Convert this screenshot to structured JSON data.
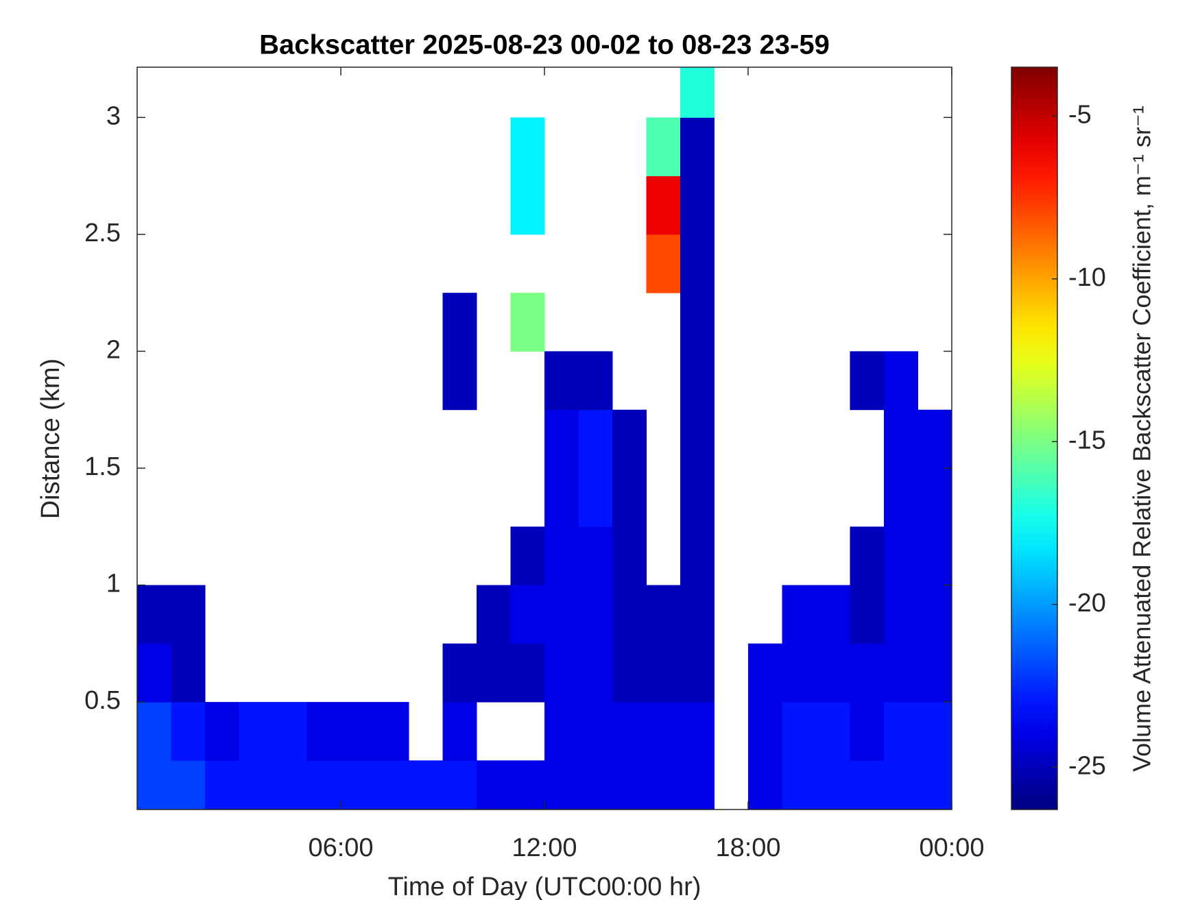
{
  "chart_data": {
    "type": "heatmap",
    "title": "Backscatter 2025-08-23 00-02 to 08-23 23-59",
    "x_label": "Time of Day (UTC00:00 hr)",
    "y_label": "Distance (km)",
    "colorbar_label": "Volume Attenuated Relative Backscatter Coefficient, m⁻¹ sr⁻¹",
    "colormap": "jet",
    "xlim": [
      0,
      24
    ],
    "xticks": [
      {
        "value": 6,
        "label": "06:00"
      },
      {
        "value": 12,
        "label": "12:00"
      },
      {
        "value": 18,
        "label": "18:00"
      },
      {
        "value": 24,
        "label": "00:00"
      }
    ],
    "ylim": [
      0.04,
      3.215
    ],
    "yticks": [
      0.5,
      1,
      1.5,
      2,
      2.5,
      3
    ],
    "clim": [
      -26.3,
      -3.5
    ],
    "cticks": [
      -25,
      -20,
      -15,
      -10,
      -5
    ],
    "xbins": [
      0,
      1,
      2,
      3,
      4,
      5,
      6,
      7,
      8,
      9,
      10,
      11,
      12,
      13,
      14,
      15,
      16,
      17,
      18,
      19,
      20,
      21,
      22,
      23,
      24
    ],
    "ybins": [
      0.04,
      0.25,
      0.5,
      0.75,
      1,
      1.25,
      1.5,
      1.75,
      2,
      2.25,
      2.5,
      2.75,
      3,
      3.215
    ],
    "values": [
      [
        -22,
        -22,
        -23,
        -23,
        -23,
        -23,
        -23,
        -23,
        -23,
        -23,
        -24,
        -24,
        -24,
        -24,
        -24,
        -24,
        -24,
        null,
        -24,
        -23,
        -23,
        -23,
        -23,
        -23
      ],
      [
        -22,
        -23,
        -24,
        -23,
        -23,
        -24,
        -24,
        -24,
        null,
        -24,
        null,
        null,
        -24,
        -24,
        -24,
        -24,
        -24,
        null,
        -24,
        -23,
        -23,
        -24,
        -23,
        -23
      ],
      [
        -24,
        -25,
        null,
        null,
        null,
        null,
        null,
        null,
        null,
        -25,
        -25,
        -25,
        -24,
        -24,
        -25,
        -25,
        -25,
        null,
        -24,
        -24,
        -24,
        -24,
        -24,
        -24
      ],
      [
        -25,
        -25,
        null,
        null,
        null,
        null,
        null,
        null,
        null,
        null,
        -25,
        -24,
        -24,
        -24,
        -25,
        -25,
        -25,
        null,
        null,
        -24,
        -24,
        -25,
        -24,
        -24
      ],
      [
        null,
        null,
        null,
        null,
        null,
        null,
        null,
        null,
        null,
        null,
        null,
        -25,
        -24,
        -24,
        -25,
        null,
        -25,
        null,
        null,
        null,
        null,
        -25,
        -24,
        -24
      ],
      [
        null,
        null,
        null,
        null,
        null,
        null,
        null,
        null,
        null,
        null,
        null,
        null,
        -24,
        -23,
        -25,
        null,
        -25,
        null,
        null,
        null,
        null,
        null,
        -24,
        -24
      ],
      [
        null,
        null,
        null,
        null,
        null,
        null,
        null,
        null,
        null,
        null,
        null,
        null,
        -24,
        -23,
        -25,
        null,
        -25,
        null,
        null,
        null,
        null,
        null,
        -24,
        -24
      ],
      [
        null,
        null,
        null,
        null,
        null,
        null,
        null,
        null,
        null,
        -25,
        null,
        null,
        -25,
        -25,
        null,
        null,
        -25,
        null,
        null,
        null,
        null,
        -25,
        -24,
        null
      ],
      [
        null,
        null,
        null,
        null,
        null,
        null,
        null,
        null,
        null,
        -25,
        null,
        -15,
        null,
        null,
        null,
        null,
        -25,
        null,
        null,
        null,
        null,
        null,
        null,
        null
      ],
      [
        null,
        null,
        null,
        null,
        null,
        null,
        null,
        null,
        null,
        null,
        null,
        null,
        null,
        null,
        null,
        -8,
        -25,
        null,
        null,
        null,
        null,
        null,
        null,
        null
      ],
      [
        null,
        null,
        null,
        null,
        null,
        null,
        null,
        null,
        null,
        null,
        null,
        -18,
        null,
        null,
        null,
        -6,
        -25,
        null,
        null,
        null,
        null,
        null,
        null,
        null
      ],
      [
        null,
        null,
        null,
        null,
        null,
        null,
        null,
        null,
        null,
        null,
        null,
        -18,
        null,
        null,
        null,
        -16,
        -25,
        null,
        null,
        null,
        null,
        null,
        null,
        null
      ],
      [
        null,
        null,
        null,
        null,
        null,
        null,
        null,
        null,
        null,
        null,
        null,
        null,
        null,
        null,
        null,
        null,
        -17,
        null,
        null,
        null,
        null,
        null,
        null,
        null
      ]
    ]
  }
}
